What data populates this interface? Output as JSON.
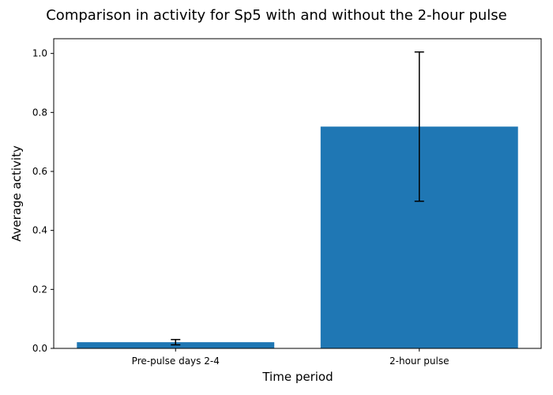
{
  "chart_data": {
    "type": "bar",
    "title": "Comparison in activity for Sp5 with and without the 2-hour pulse",
    "xlabel": "Time period",
    "ylabel": "Average activity",
    "categories": [
      "Pre-pulse days 2-4",
      "2-hour pulse"
    ],
    "values": [
      0.021,
      0.752
    ],
    "error": [
      0.009,
      0.253
    ],
    "ylim": [
      0,
      1.05
    ],
    "yticks": [
      0.0,
      0.2,
      0.4,
      0.6,
      0.8,
      1.0
    ],
    "ytick_labels": [
      "0.0",
      "0.2",
      "0.4",
      "0.6",
      "0.8",
      "1.0"
    ],
    "bar_color": "#1f77b4",
    "grid": false
  }
}
